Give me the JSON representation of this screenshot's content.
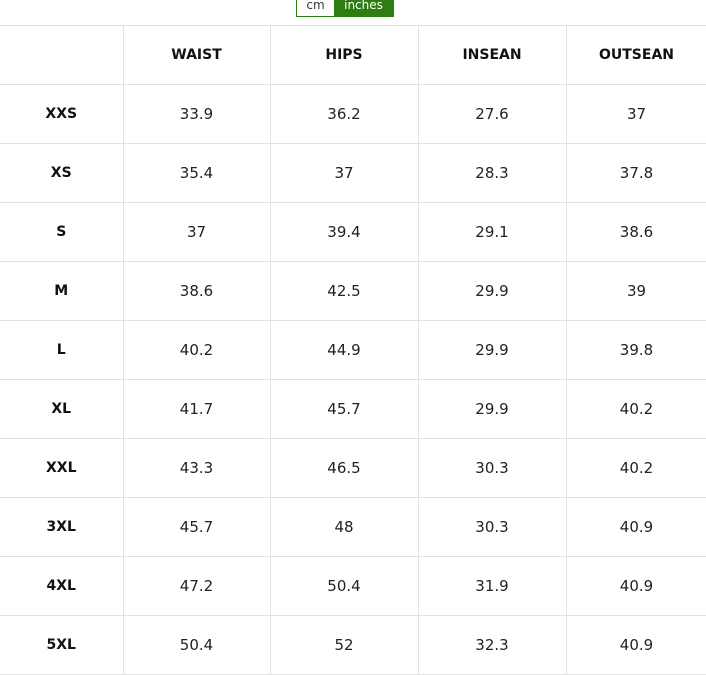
{
  "unit_toggle": {
    "options": [
      "cm",
      "inches"
    ],
    "selected": "inches",
    "accent_color": "#2e7d13"
  },
  "table": {
    "headers": [
      "",
      "WAIST",
      "HIPS",
      "INSEAN",
      "OUTSEAN"
    ],
    "rows": [
      [
        "XXS",
        "33.9",
        "36.2",
        "27.6",
        "37"
      ],
      [
        "XS",
        "35.4",
        "37",
        "28.3",
        "37.8"
      ],
      [
        "S",
        "37",
        "39.4",
        "29.1",
        "38.6"
      ],
      [
        "M",
        "38.6",
        "42.5",
        "29.9",
        "39"
      ],
      [
        "L",
        "40.2",
        "44.9",
        "29.9",
        "39.8"
      ],
      [
        "XL",
        "41.7",
        "45.7",
        "29.9",
        "40.2"
      ],
      [
        "XXL",
        "43.3",
        "46.5",
        "30.3",
        "40.2"
      ],
      [
        "3XL",
        "45.7",
        "48",
        "30.3",
        "40.9"
      ],
      [
        "4XL",
        "47.2",
        "50.4",
        "31.9",
        "40.9"
      ],
      [
        "5XL",
        "50.4",
        "52",
        "32.3",
        "40.9"
      ]
    ]
  }
}
